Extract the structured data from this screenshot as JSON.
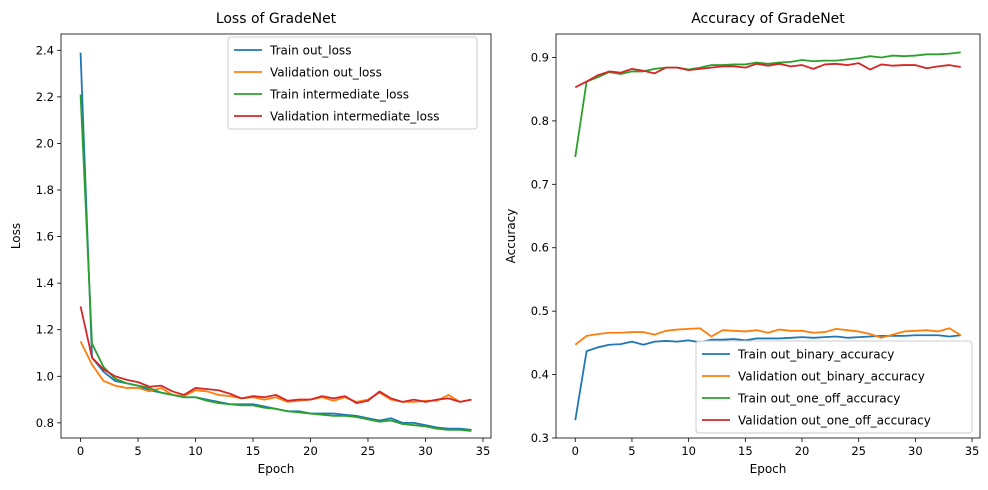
{
  "chart_data": [
    {
      "type": "line",
      "title": "Loss of GradeNet",
      "xlabel": "Epoch",
      "ylabel": "Loss",
      "xlim": [
        -1.7,
        35.7
      ],
      "ylim": [
        0.735,
        2.47
      ],
      "xticks": [
        0,
        5,
        10,
        15,
        20,
        25,
        30,
        35
      ],
      "yticks": [
        0.8,
        1.0,
        1.2,
        1.4,
        1.6,
        1.8,
        2.0,
        2.2,
        2.4
      ],
      "ytick_labels": [
        "0.8",
        "1.0",
        "1.2",
        "1.4",
        "1.6",
        "1.8",
        "2.0",
        "2.2",
        "2.4"
      ],
      "grid": false,
      "legend": "top-right",
      "x": [
        0,
        1,
        2,
        3,
        4,
        5,
        6,
        7,
        8,
        9,
        10,
        11,
        12,
        13,
        14,
        15,
        16,
        17,
        18,
        19,
        20,
        21,
        22,
        23,
        24,
        25,
        26,
        27,
        28,
        29,
        30,
        31,
        32,
        33,
        34
      ],
      "series": [
        {
          "name": "Train out_loss",
          "color": "#1f77b4",
          "values": [
            2.39,
            1.08,
            1.02,
            0.98,
            0.97,
            0.96,
            0.94,
            0.93,
            0.92,
            0.91,
            0.91,
            0.9,
            0.89,
            0.88,
            0.88,
            0.88,
            0.87,
            0.86,
            0.85,
            0.85,
            0.84,
            0.84,
            0.84,
            0.835,
            0.83,
            0.82,
            0.81,
            0.82,
            0.8,
            0.8,
            0.79,
            0.78,
            0.775,
            0.775,
            0.77
          ]
        },
        {
          "name": "Validation out_loss",
          "color": "#ff7f0e",
          "values": [
            1.15,
            1.05,
            0.98,
            0.96,
            0.95,
            0.95,
            0.935,
            0.95,
            0.92,
            0.915,
            0.94,
            0.935,
            0.92,
            0.915,
            0.905,
            0.91,
            0.9,
            0.91,
            0.89,
            0.895,
            0.9,
            0.91,
            0.895,
            0.91,
            0.89,
            0.9,
            0.93,
            0.9,
            0.89,
            0.89,
            0.895,
            0.895,
            0.92,
            0.89,
            0.9
          ]
        },
        {
          "name": "Train intermediate_loss",
          "color": "#2ca02c",
          "values": [
            2.21,
            1.14,
            1.04,
            0.99,
            0.97,
            0.96,
            0.95,
            0.93,
            0.92,
            0.91,
            0.91,
            0.895,
            0.885,
            0.88,
            0.875,
            0.875,
            0.865,
            0.86,
            0.85,
            0.845,
            0.84,
            0.835,
            0.83,
            0.83,
            0.825,
            0.815,
            0.805,
            0.81,
            0.795,
            0.79,
            0.785,
            0.775,
            0.77,
            0.77,
            0.765
          ]
        },
        {
          "name": "Validation intermediate_loss",
          "color": "#d62728",
          "values": [
            1.3,
            1.08,
            1.03,
            1.0,
            0.985,
            0.975,
            0.955,
            0.96,
            0.935,
            0.92,
            0.95,
            0.945,
            0.94,
            0.925,
            0.905,
            0.915,
            0.91,
            0.92,
            0.895,
            0.9,
            0.9,
            0.915,
            0.905,
            0.915,
            0.885,
            0.895,
            0.935,
            0.905,
            0.89,
            0.9,
            0.89,
            0.9,
            0.905,
            0.89,
            0.9
          ]
        }
      ]
    },
    {
      "type": "line",
      "title": "Accuracy of GradeNet",
      "xlabel": "Epoch",
      "ylabel": "Accuracy",
      "xlim": [
        -1.7,
        35.7
      ],
      "ylim": [
        0.3,
        0.937
      ],
      "xticks": [
        0,
        5,
        10,
        15,
        20,
        25,
        30,
        35
      ],
      "yticks": [
        0.3,
        0.4,
        0.5,
        0.6,
        0.7,
        0.8,
        0.9
      ],
      "ytick_labels": [
        "0.3",
        "0.4",
        "0.5",
        "0.6",
        "0.7",
        "0.8",
        "0.9"
      ],
      "grid": false,
      "legend": "bottom-right",
      "x": [
        0,
        1,
        2,
        3,
        4,
        5,
        6,
        7,
        8,
        9,
        10,
        11,
        12,
        13,
        14,
        15,
        16,
        17,
        18,
        19,
        20,
        21,
        22,
        23,
        24,
        25,
        26,
        27,
        28,
        29,
        30,
        31,
        32,
        33,
        34
      ],
      "series": [
        {
          "name": "Train out_binary_accuracy",
          "color": "#1f77b4",
          "values": [
            0.328,
            0.437,
            0.443,
            0.447,
            0.448,
            0.452,
            0.447,
            0.452,
            0.453,
            0.452,
            0.454,
            0.451,
            0.455,
            0.455,
            0.456,
            0.454,
            0.457,
            0.457,
            0.457,
            0.458,
            0.459,
            0.458,
            0.459,
            0.46,
            0.458,
            0.459,
            0.46,
            0.461,
            0.461,
            0.461,
            0.462,
            0.462,
            0.462,
            0.46,
            0.462
          ]
        },
        {
          "name": "Validation out_binary_accuracy",
          "color": "#ff7f0e",
          "values": [
            0.447,
            0.461,
            0.464,
            0.466,
            0.466,
            0.467,
            0.467,
            0.463,
            0.469,
            0.471,
            0.472,
            0.473,
            0.46,
            0.47,
            0.469,
            0.468,
            0.47,
            0.466,
            0.471,
            0.469,
            0.469,
            0.466,
            0.467,
            0.472,
            0.47,
            0.468,
            0.464,
            0.458,
            0.463,
            0.468,
            0.469,
            0.47,
            0.468,
            0.473,
            0.462
          ]
        },
        {
          "name": "Train out_one_off_accuracy",
          "color": "#2ca02c",
          "values": [
            0.743,
            0.862,
            0.869,
            0.877,
            0.874,
            0.878,
            0.878,
            0.882,
            0.884,
            0.884,
            0.881,
            0.884,
            0.888,
            0.888,
            0.889,
            0.889,
            0.892,
            0.89,
            0.892,
            0.893,
            0.896,
            0.894,
            0.895,
            0.895,
            0.897,
            0.899,
            0.902,
            0.9,
            0.903,
            0.902,
            0.903,
            0.905,
            0.905,
            0.906,
            0.908
          ]
        },
        {
          "name": "Validation out_one_off_accuracy",
          "color": "#d62728",
          "values": [
            0.853,
            0.862,
            0.872,
            0.878,
            0.876,
            0.882,
            0.879,
            0.875,
            0.884,
            0.884,
            0.88,
            0.882,
            0.884,
            0.886,
            0.886,
            0.884,
            0.89,
            0.887,
            0.89,
            0.886,
            0.888,
            0.882,
            0.889,
            0.89,
            0.888,
            0.891,
            0.881,
            0.889,
            0.887,
            0.888,
            0.888,
            0.883,
            0.886,
            0.888,
            0.885
          ]
        }
      ]
    }
  ]
}
